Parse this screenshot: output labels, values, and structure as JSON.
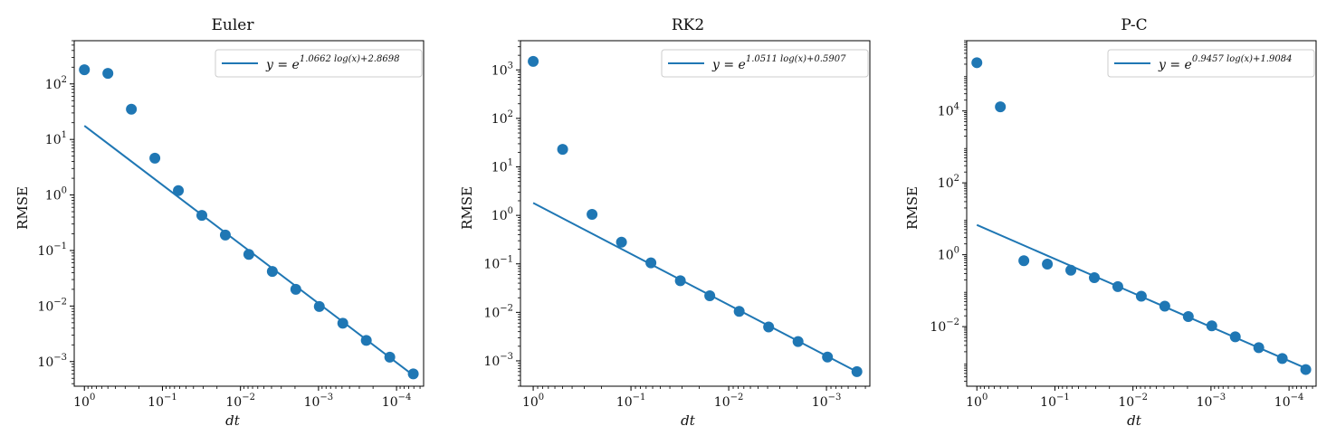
{
  "chart_data": [
    {
      "type": "scatter",
      "title": "Euler",
      "xlabel": "dt",
      "ylabel": "RMSE",
      "x_scale": "log",
      "y_scale": "log",
      "x_inverted": true,
      "xlim": [
        1.35,
        4.5e-05
      ],
      "ylim": [
        0.00036,
        600
      ],
      "x_ticks": [
        1,
        0.1,
        0.01,
        0.001,
        0.0001
      ],
      "x_tick_labels": [
        "10^0",
        "10^-1",
        "10^-2",
        "10^-3",
        "10^-4"
      ],
      "y_ticks": [
        0.001,
        0.01,
        0.1,
        1,
        10,
        100
      ],
      "y_tick_labels": [
        "10^-3",
        "10^-2",
        "10^-1",
        "10^0",
        "10^1",
        "10^2"
      ],
      "legend_position": "top-right",
      "series": [
        {
          "name": "y = e^{1.0662 log(x)+2.8698}",
          "kind": "points",
          "color": "#1f77b4",
          "x": [
            1,
            0.5,
            0.25,
            0.125,
            0.0625,
            0.03125,
            0.015625,
            0.0078125,
            0.00390625,
            0.001953125,
            0.0009765625,
            0.00048828125,
            0.000244140625,
            0.0001220703125,
            6.103515625e-05
          ],
          "y": [
            180,
            155,
            35,
            4.6,
            1.2,
            0.43,
            0.19,
            0.085,
            0.042,
            0.02,
            0.0098,
            0.0049,
            0.0024,
            0.0012,
            0.0006
          ]
        },
        {
          "name": "y = e^{1.0662 log(x)+2.8698}",
          "kind": "line",
          "color": "#1f77b4",
          "slope": 1.0662,
          "intercept": 2.8698,
          "x_range": [
            1,
            6.103515625e-05
          ]
        }
      ],
      "legend_label": "y = e^{1.0662 log(x)+2.8698}",
      "legend_main": "y = e",
      "legend_exp": "1.0662 log(x)+2.8698"
    },
    {
      "type": "scatter",
      "title": "RK2",
      "xlabel": "dt",
      "ylabel": "RMSE",
      "x_scale": "log",
      "y_scale": "log",
      "x_inverted": true,
      "xlim": [
        1.35,
        0.00036
      ],
      "ylim": [
        0.0003,
        4000
      ],
      "x_ticks": [
        1,
        0.1,
        0.01,
        0.001
      ],
      "x_tick_labels": [
        "10^0",
        "10^-1",
        "10^-2",
        "10^-3"
      ],
      "y_ticks": [
        0.001,
        0.01,
        0.1,
        1,
        10,
        100,
        1000
      ],
      "y_tick_labels": [
        "10^-3",
        "10^-2",
        "10^-1",
        "10^0",
        "10^1",
        "10^2",
        "10^3"
      ],
      "legend_position": "top-right",
      "series": [
        {
          "name": "y = e^{1.0511 log(x)+0.5907}",
          "kind": "points",
          "color": "#1f77b4",
          "x": [
            1,
            0.5,
            0.25,
            0.125,
            0.0625,
            0.03125,
            0.015625,
            0.0078125,
            0.00390625,
            0.001953125,
            0.0009765625,
            0.00048828125
          ],
          "y": [
            1500,
            23,
            1.05,
            0.28,
            0.105,
            0.045,
            0.022,
            0.0105,
            0.005,
            0.0025,
            0.0012,
            0.0006
          ]
        },
        {
          "name": "y = e^{1.0511 log(x)+0.5907}",
          "kind": "line",
          "color": "#1f77b4",
          "slope": 1.0511,
          "intercept": 0.5907,
          "x_range": [
            1,
            0.00048828125
          ]
        }
      ],
      "legend_label": "y = e^{1.0511 log(x)+0.5907}",
      "legend_main": "y = e",
      "legend_exp": "1.0511 log(x)+0.5907"
    },
    {
      "type": "scatter",
      "title": "P-C",
      "xlabel": "dt",
      "ylabel": "RMSE",
      "x_scale": "log",
      "y_scale": "log",
      "x_inverted": true,
      "xlim": [
        1.35,
        4.5e-05
      ],
      "ylim": [
        0.00022,
        900000
      ],
      "x_ticks": [
        1,
        0.1,
        0.01,
        0.001,
        0.0001
      ],
      "x_tick_labels": [
        "10^0",
        "10^-1",
        "10^-2",
        "10^-3",
        "10^-4"
      ],
      "y_ticks": [
        0.01,
        1,
        100,
        10000
      ],
      "y_tick_labels": [
        "10^-2",
        "10^0",
        "10^2",
        "10^4"
      ],
      "legend_position": "top-right",
      "series": [
        {
          "name": "y = e^{0.9457 log(x)+1.9084}",
          "kind": "points",
          "color": "#1f77b4",
          "x": [
            1,
            0.5,
            0.25,
            0.125,
            0.0625,
            0.03125,
            0.015625,
            0.0078125,
            0.00390625,
            0.001953125,
            0.0009765625,
            0.00048828125,
            0.000244140625,
            0.0001220703125,
            6.103515625e-05
          ],
          "y": [
            220000,
            13000,
            0.68,
            0.55,
            0.37,
            0.23,
            0.13,
            0.07,
            0.037,
            0.019,
            0.0105,
            0.0052,
            0.0026,
            0.0013,
            0.00064
          ]
        },
        {
          "name": "y = e^{0.9457 log(x)+1.9084}",
          "kind": "line",
          "color": "#1f77b4",
          "slope": 0.9457,
          "intercept": 1.9084,
          "x_range": [
            1,
            6.103515625e-05
          ]
        }
      ],
      "legend_label": "y = e^{0.9457 log(x)+1.9084}",
      "legend_main": "y = e",
      "legend_exp": "0.9457 log(x)+1.9084"
    }
  ]
}
